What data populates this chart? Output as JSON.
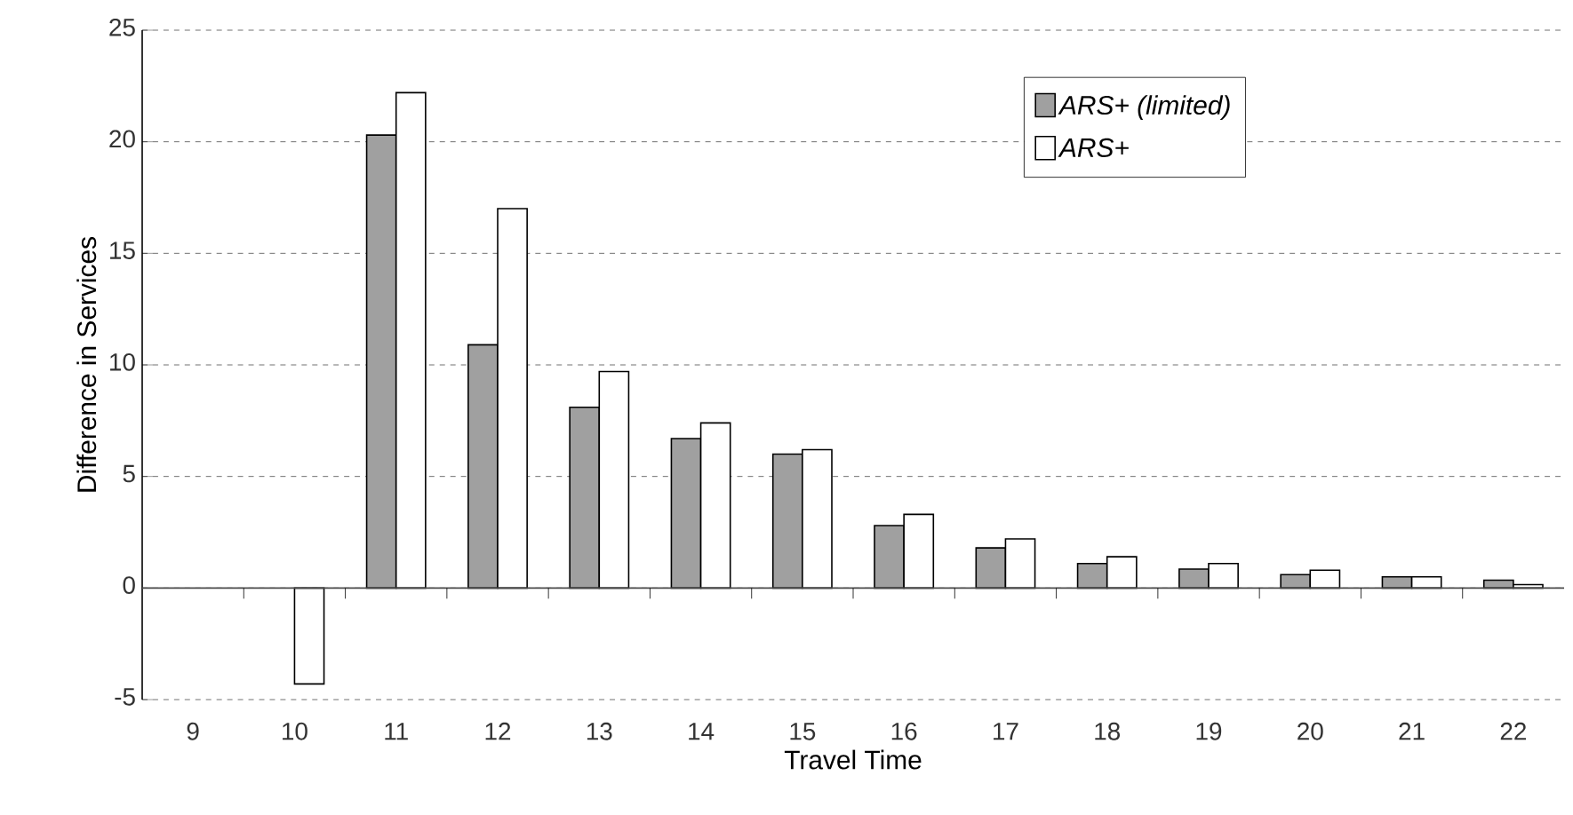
{
  "chart_data": {
    "type": "bar",
    "xlabel": "Travel Time",
    "ylabel": "Difference in  Services",
    "categories": [
      "9",
      "10",
      "11",
      "12",
      "13",
      "14",
      "15",
      "16",
      "17",
      "18",
      "19",
      "20",
      "21",
      "22"
    ],
    "series": [
      {
        "name": "ARS+ (limited)",
        "color": "#a0a0a0",
        "values": [
          null,
          null,
          20.3,
          10.9,
          8.1,
          6.7,
          6.0,
          2.8,
          1.8,
          1.1,
          0.85,
          0.6,
          0.5,
          0.35
        ]
      },
      {
        "name": "ARS+",
        "color": "#ffffff",
        "values": [
          null,
          -4.3,
          22.2,
          17.0,
          9.7,
          7.4,
          6.2,
          3.3,
          2.2,
          1.4,
          1.1,
          0.8,
          0.5,
          0.15
        ]
      }
    ],
    "ylim": [
      -5,
      25
    ],
    "yticks": [
      -5,
      0,
      5,
      10,
      15,
      20,
      25
    ],
    "grid": "y",
    "legend": "top right"
  }
}
